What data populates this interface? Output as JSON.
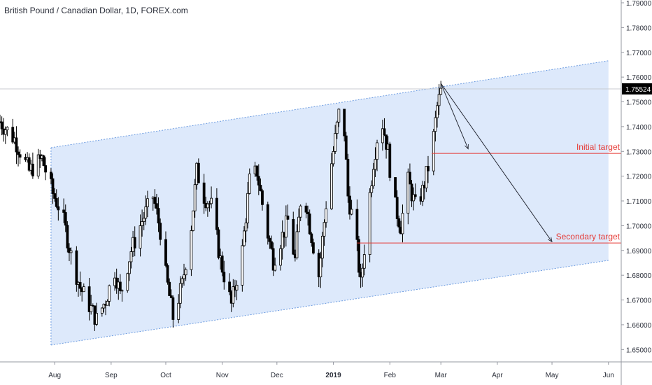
{
  "header": {
    "symbol_title": "British Pound / Canadian Dollar, 1D, FOREX.com"
  },
  "colors": {
    "candle": "#000000",
    "channel_fill": "#dde9fb",
    "channel_border": "#6d9ce0",
    "target_line": "#e53935",
    "target_text": "#e53935",
    "arrow": "#2a2e39",
    "price_badge_bg": "#000000",
    "price_badge_text": "#ffffff",
    "axis_text": "#2a2e39"
  },
  "chart_data": {
    "type": "candlestick",
    "ylim": [
      1.645,
      1.79
    ],
    "y_ticks": [
      "1.79000",
      "1.78000",
      "1.77000",
      "1.76000",
      "1.75000",
      "1.74000",
      "1.73000",
      "1.72000",
      "1.71000",
      "1.70000",
      "1.69000",
      "1.68000",
      "1.67000",
      "1.66000",
      "1.65000"
    ],
    "x_ticks": [
      {
        "label": "Aug",
        "date": "2018-08-01"
      },
      {
        "label": "Sep",
        "date": "2018-09-01"
      },
      {
        "label": "Oct",
        "date": "2018-10-01"
      },
      {
        "label": "Nov",
        "date": "2018-11-01"
      },
      {
        "label": "Dec",
        "date": "2018-12-01"
      },
      {
        "label": "2019",
        "date": "2019-01-01"
      },
      {
        "label": "Feb",
        "date": "2019-02-01"
      },
      {
        "label": "Mar",
        "date": "2019-03-01"
      },
      {
        "label": "Apr",
        "date": "2019-04-01"
      },
      {
        "label": "May",
        "date": "2019-05-01"
      },
      {
        "label": "Jun",
        "date": "2019-06-01"
      }
    ],
    "x_range": [
      "2018-07-02",
      "2019-06-08"
    ],
    "current_price": {
      "label": "1.75524",
      "value": 1.75524
    },
    "close_path": [
      [
        "2018-07-02",
        1.742
      ],
      [
        "2018-07-10",
        1.735
      ],
      [
        "2018-07-18",
        1.722
      ],
      [
        "2018-07-25",
        1.727
      ],
      [
        "2018-07-31",
        1.713
      ],
      [
        "2018-08-05",
        1.705
      ],
      [
        "2018-08-10",
        1.688
      ],
      [
        "2018-08-15",
        1.675
      ],
      [
        "2018-08-20",
        1.668
      ],
      [
        "2018-08-24",
        1.662
      ],
      [
        "2018-08-29",
        1.67
      ],
      [
        "2018-09-03",
        1.682
      ],
      [
        "2018-09-06",
        1.672
      ],
      [
        "2018-09-12",
        1.69
      ],
      [
        "2018-09-18",
        1.702
      ],
      [
        "2018-09-24",
        1.712
      ],
      [
        "2018-09-28",
        1.698
      ],
      [
        "2018-10-01",
        1.68
      ],
      [
        "2018-10-05",
        1.663
      ],
      [
        "2018-10-10",
        1.676
      ],
      [
        "2018-10-15",
        1.7
      ],
      [
        "2018-10-18",
        1.722
      ],
      [
        "2018-10-22",
        1.712
      ],
      [
        "2018-10-26",
        1.708
      ],
      [
        "2018-10-31",
        1.686
      ],
      [
        "2018-11-06",
        1.668
      ],
      [
        "2018-11-12",
        1.69
      ],
      [
        "2018-11-16",
        1.718
      ],
      [
        "2018-11-20",
        1.722
      ],
      [
        "2018-11-25",
        1.7
      ],
      [
        "2018-11-29",
        1.686
      ],
      [
        "2018-12-03",
        1.694
      ],
      [
        "2018-12-07",
        1.702
      ],
      [
        "2018-12-11",
        1.686
      ],
      [
        "2018-12-15",
        1.718
      ],
      [
        "2018-12-19",
        1.7
      ],
      [
        "2018-12-24",
        1.68
      ],
      [
        "2018-12-29",
        1.716
      ],
      [
        "2019-01-01",
        1.73
      ],
      [
        "2019-01-04",
        1.745
      ],
      [
        "2019-01-07",
        1.738
      ],
      [
        "2019-01-09",
        1.712
      ],
      [
        "2019-01-13",
        1.698
      ],
      [
        "2019-01-16",
        1.676
      ],
      [
        "2019-01-20",
        1.706
      ],
      [
        "2019-01-23",
        1.726
      ],
      [
        "2019-01-27",
        1.745
      ],
      [
        "2019-01-31",
        1.73
      ],
      [
        "2019-02-03",
        1.71
      ],
      [
        "2019-02-07",
        1.7
      ],
      [
        "2019-02-11",
        1.718
      ],
      [
        "2019-02-15",
        1.708
      ],
      [
        "2019-02-19",
        1.714
      ],
      [
        "2019-02-24",
        1.73
      ],
      [
        "2019-02-27",
        1.748
      ],
      [
        "2019-03-01",
        1.754
      ]
    ],
    "channel": {
      "upper": [
        [
          "2018-07-30",
          1.7315
        ],
        [
          "2019-06-01",
          1.7666
        ]
      ],
      "lower": [
        [
          "2018-07-30",
          1.6518
        ],
        [
          "2019-06-01",
          1.686
        ]
      ]
    },
    "targets": [
      {
        "label": "Initial target",
        "value": 1.7292,
        "from": "2019-02-24"
      },
      {
        "label": "Secondary target",
        "value": 1.693,
        "from": "2019-01-14"
      }
    ],
    "arrows": [
      {
        "from": [
          "2019-03-01",
          1.7575
        ],
        "to": [
          "2019-03-16",
          1.731
        ]
      },
      {
        "from": [
          "2019-03-01",
          1.7575
        ],
        "to": [
          "2019-05-01",
          1.6935
        ]
      }
    ]
  }
}
